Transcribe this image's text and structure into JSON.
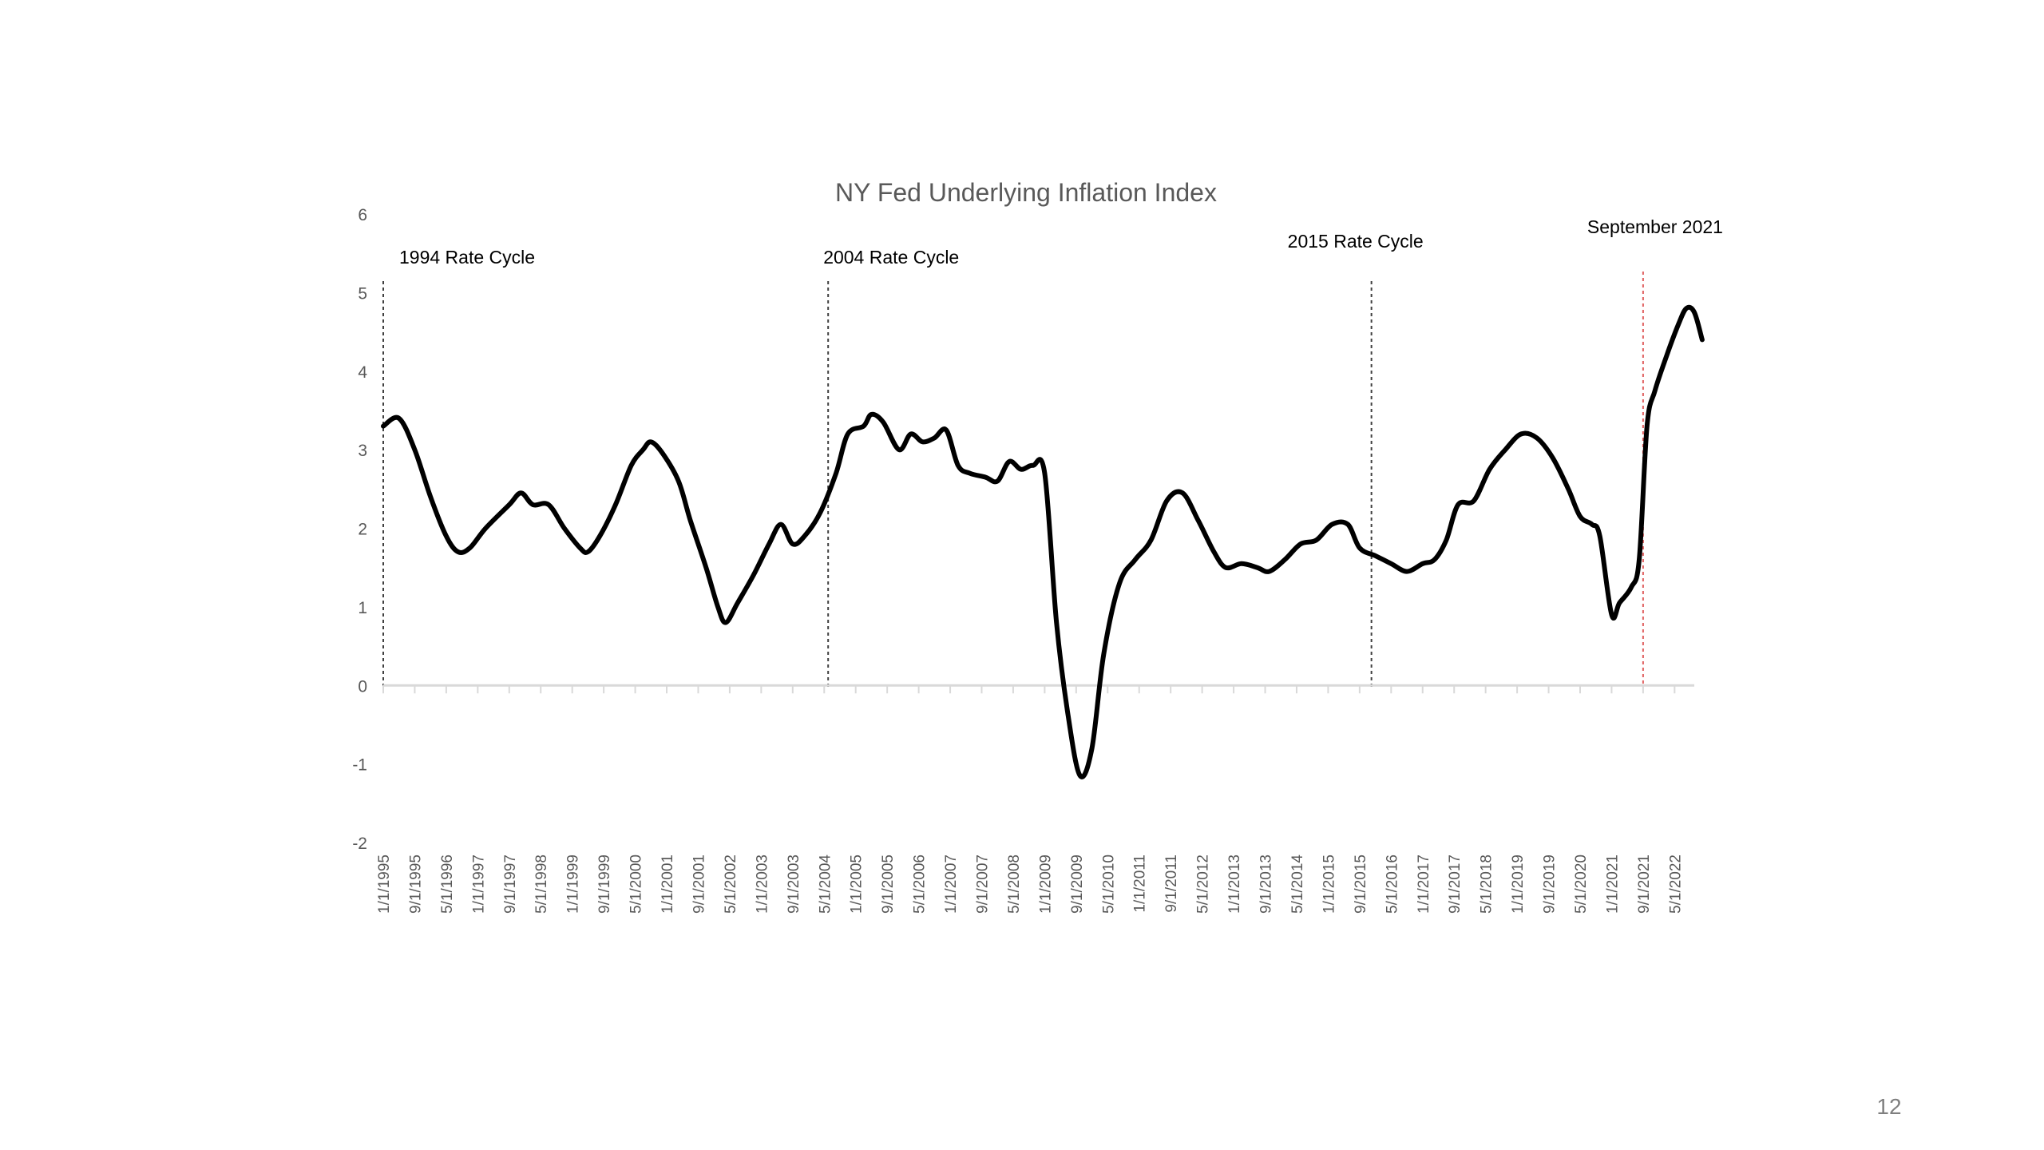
{
  "slide": {
    "page_number": "12"
  },
  "chart_data": {
    "type": "line",
    "title": "NY Fed Underlying Inflation Index",
    "xlabel": "",
    "ylabel": "",
    "ylim": [
      -2,
      6
    ],
    "yticks": [
      "6",
      "5",
      "4",
      "3",
      "2",
      "1",
      "0",
      "-1",
      "-2"
    ],
    "grid": false,
    "legend": "none",
    "colors": {
      "series": "#000000",
      "cycle_marker": "#404040",
      "highlight_marker": "#e06060",
      "axis": "#d9d9d9",
      "tick_label": "#595959"
    },
    "x_tick_labels": [
      "1/1/1995",
      "9/1/1995",
      "5/1/1996",
      "1/1/1997",
      "9/1/1997",
      "5/1/1998",
      "1/1/1999",
      "9/1/1999",
      "5/1/2000",
      "1/1/2001",
      "9/1/2001",
      "5/1/2002",
      "1/1/2003",
      "9/1/2003",
      "5/1/2004",
      "1/1/2005",
      "9/1/2005",
      "5/1/2006",
      "1/1/2007",
      "9/1/2007",
      "5/1/2008",
      "1/1/2009",
      "9/1/2009",
      "5/1/2010",
      "1/1/2011",
      "9/1/2011",
      "5/1/2012",
      "1/1/2013",
      "9/1/2013",
      "5/1/2014",
      "1/1/2015",
      "9/1/2015",
      "5/1/2016",
      "1/1/2017",
      "9/1/2017",
      "5/1/2018",
      "1/1/2019",
      "9/1/2019",
      "5/1/2020",
      "1/1/2021",
      "9/1/2021",
      "5/1/2022"
    ],
    "x_range": [
      "1/1/1995",
      "10/1/2022"
    ],
    "annotations": [
      {
        "label": "1994 Rate Cycle",
        "date": "1/1/1995",
        "style": "dotted-black"
      },
      {
        "label": "2004 Rate Cycle",
        "date": "6/1/2004",
        "style": "dotted-black"
      },
      {
        "label": "2015 Rate Cycle",
        "date": "12/1/2015",
        "style": "dotted-black"
      },
      {
        "label": "September 2021",
        "date": "9/1/2021",
        "style": "dotted-red"
      }
    ],
    "series": [
      {
        "values": [
          [
            "1/1/1995",
            3.3
          ],
          [
            "5/1/1995",
            3.4
          ],
          [
            "9/1/1995",
            3.0
          ],
          [
            "1/1/1996",
            2.4
          ],
          [
            "5/1/1996",
            1.9
          ],
          [
            "8/1/1996",
            1.7
          ],
          [
            "11/1/1996",
            1.75
          ],
          [
            "3/1/1997",
            2.0
          ],
          [
            "9/1/1997",
            2.3
          ],
          [
            "12/1/1997",
            2.45
          ],
          [
            "3/1/1998",
            2.3
          ],
          [
            "7/1/1998",
            2.3
          ],
          [
            "11/1/1998",
            2.0
          ],
          [
            "3/1/1999",
            1.75
          ],
          [
            "5/1/1999",
            1.7
          ],
          [
            "8/1/1999",
            1.9
          ],
          [
            "12/1/1999",
            2.3
          ],
          [
            "4/1/2000",
            2.8
          ],
          [
            "7/1/2000",
            3.0
          ],
          [
            "9/1/2000",
            3.1
          ],
          [
            "12/1/2000",
            2.95
          ],
          [
            "4/1/2001",
            2.6
          ],
          [
            "7/1/2001",
            2.1
          ],
          [
            "11/1/2001",
            1.5
          ],
          [
            "2/1/2002",
            1.0
          ],
          [
            "4/1/2002",
            0.8
          ],
          [
            "7/1/2002",
            1.05
          ],
          [
            "11/1/2002",
            1.4
          ],
          [
            "3/1/2003",
            1.8
          ],
          [
            "6/1/2003",
            2.05
          ],
          [
            "9/1/2003",
            1.8
          ],
          [
            "12/1/2003",
            1.9
          ],
          [
            "4/1/2004",
            2.2
          ],
          [
            "8/1/2004",
            2.7
          ],
          [
            "11/1/2004",
            3.2
          ],
          [
            "3/1/2005",
            3.3
          ],
          [
            "5/1/2005",
            3.45
          ],
          [
            "8/1/2005",
            3.35
          ],
          [
            "12/1/2005",
            3.0
          ],
          [
            "3/1/2006",
            3.2
          ],
          [
            "6/1/2006",
            3.1
          ],
          [
            "9/1/2006",
            3.15
          ],
          [
            "12/1/2006",
            3.25
          ],
          [
            "3/1/2007",
            2.8
          ],
          [
            "6/1/2007",
            2.7
          ],
          [
            "10/1/2007",
            2.65
          ],
          [
            "1/1/2008",
            2.6
          ],
          [
            "4/1/2008",
            2.85
          ],
          [
            "7/1/2008",
            2.75
          ],
          [
            "10/1/2008",
            2.8
          ],
          [
            "1/1/2009",
            2.7
          ],
          [
            "4/1/2009",
            0.8
          ],
          [
            "7/1/2009",
            -0.4
          ],
          [
            "10/1/2009",
            -1.15
          ],
          [
            "1/1/2010",
            -0.8
          ],
          [
            "4/1/2010",
            0.4
          ],
          [
            "8/1/2010",
            1.3
          ],
          [
            "12/1/2010",
            1.6
          ],
          [
            "4/1/2011",
            1.85
          ],
          [
            "8/1/2011",
            2.35
          ],
          [
            "12/1/2011",
            2.45
          ],
          [
            "4/1/2012",
            2.1
          ],
          [
            "8/1/2012",
            1.7
          ],
          [
            "11/1/2012",
            1.5
          ],
          [
            "3/1/2013",
            1.55
          ],
          [
            "7/1/2013",
            1.5
          ],
          [
            "10/1/2013",
            1.45
          ],
          [
            "2/1/2014",
            1.6
          ],
          [
            "6/1/2014",
            1.8
          ],
          [
            "10/1/2014",
            1.85
          ],
          [
            "2/1/2015",
            2.05
          ],
          [
            "6/1/2015",
            2.05
          ],
          [
            "9/1/2015",
            1.75
          ],
          [
            "1/1/2016",
            1.65
          ],
          [
            "5/1/2016",
            1.55
          ],
          [
            "9/1/2016",
            1.45
          ],
          [
            "1/1/2017",
            1.55
          ],
          [
            "4/1/2017",
            1.6
          ],
          [
            "7/1/2017",
            1.85
          ],
          [
            "10/1/2017",
            2.3
          ],
          [
            "2/1/2018",
            2.35
          ],
          [
            "6/1/2018",
            2.75
          ],
          [
            "10/1/2018",
            3.0
          ],
          [
            "2/1/2019",
            3.2
          ],
          [
            "6/1/2019",
            3.15
          ],
          [
            "10/1/2019",
            2.9
          ],
          [
            "2/1/2020",
            2.5
          ],
          [
            "5/1/2020",
            2.15
          ],
          [
            "8/1/2020",
            2.05
          ],
          [
            "10/1/2020",
            1.9
          ],
          [
            "1/1/2021",
            0.9
          ],
          [
            "3/1/2021",
            1.05
          ],
          [
            "6/1/2021",
            1.25
          ],
          [
            "8/1/2021",
            1.6
          ],
          [
            "10/1/2021",
            3.3
          ],
          [
            "12/1/2021",
            3.75
          ],
          [
            "3/1/2022",
            4.2
          ],
          [
            "6/1/2022",
            4.6
          ],
          [
            "8/1/2022",
            4.8
          ],
          [
            "10/1/2022",
            4.75
          ],
          [
            "12/1/2022",
            4.4
          ]
        ]
      }
    ]
  }
}
